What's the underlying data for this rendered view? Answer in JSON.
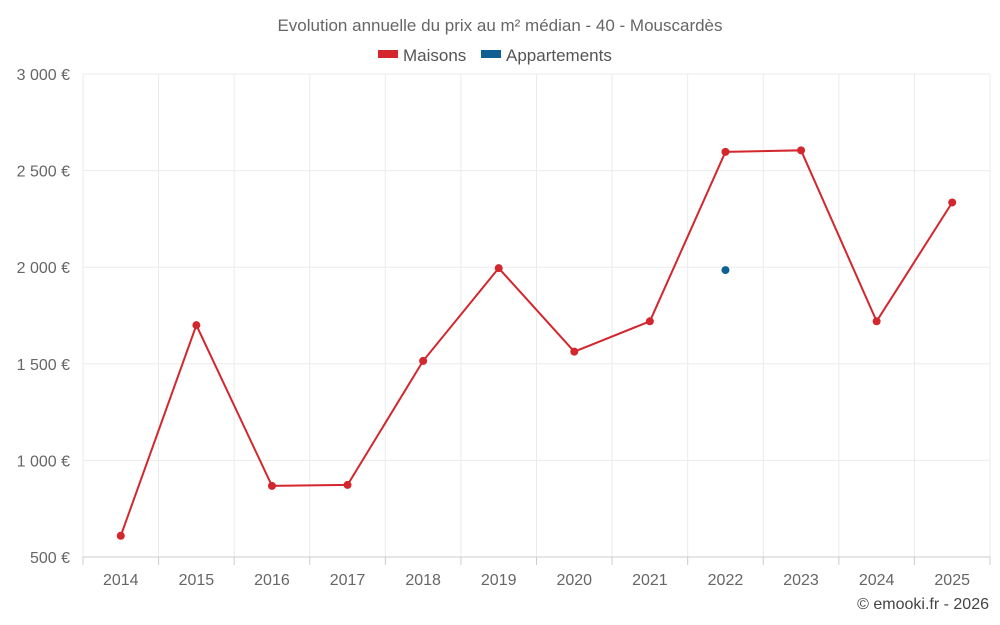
{
  "chart_data": {
    "type": "line",
    "title": "Evolution annuelle du prix au m² médian - 40 - Mouscardès",
    "categories": [
      "2014",
      "2015",
      "2016",
      "2017",
      "2018",
      "2019",
      "2020",
      "2021",
      "2022",
      "2023",
      "2024",
      "2025"
    ],
    "series": [
      {
        "name": "Maisons",
        "color": "#d3262d",
        "values": [
          610,
          1700,
          868,
          873,
          1515,
          1995,
          1563,
          1720,
          2597,
          2605,
          1720,
          2335
        ]
      },
      {
        "name": "Appartements",
        "color": "#0e5f92",
        "values": [
          null,
          null,
          null,
          null,
          null,
          null,
          null,
          null,
          1985,
          null,
          null,
          null
        ]
      }
    ],
    "ylim": [
      500,
      3000
    ],
    "yticks": [
      500,
      1000,
      1500,
      2000,
      2500,
      3000
    ],
    "ytick_labels": [
      "500 €",
      "1 000 €",
      "1 500 €",
      "2 000 €",
      "2 500 €",
      "3 000 €"
    ],
    "xlabel": "",
    "ylabel": "",
    "grid": true,
    "legend": "top-center"
  },
  "credit": "© emooki.fr - 2026"
}
